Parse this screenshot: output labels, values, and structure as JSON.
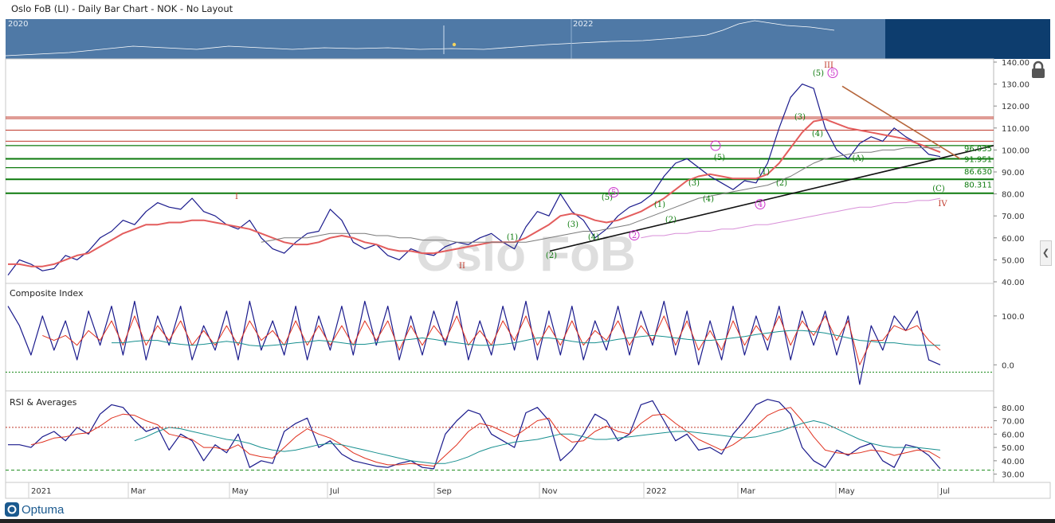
{
  "header": {
    "title": "Oslo FoB (LI) - Daily Bar Chart - NOK - No Layout"
  },
  "navigator": {
    "years": [
      "2020",
      "2022"
    ]
  },
  "brand": {
    "name": "Optuma"
  },
  "watermark": "Oslo FoB",
  "chart_data": [
    {
      "type": "line",
      "name": "price",
      "ylim": [
        40,
        140
      ],
      "y_ticks": [
        "140.00",
        "130.00",
        "120.00",
        "110.00",
        "100.00",
        "90.00",
        "80.00",
        "70.00",
        "60.00",
        "50.00",
        "40.00"
      ],
      "x_ticks": [
        "2021",
        "Mar",
        "May",
        "Jul",
        "Sep",
        "Nov",
        "2022",
        "Mar",
        "May",
        "Jul"
      ],
      "red_levels": [
        115,
        109,
        104
      ],
      "green_levels": [
        102,
        96,
        91.95,
        86.63,
        80.3
      ],
      "level_labels": [
        "96.035",
        "91.951",
        "86.630",
        "80.311"
      ],
      "wave_labels": [
        "I",
        "II",
        "III",
        "IV",
        "(1)",
        "(2)",
        "(3)",
        "(4)",
        "(5)",
        "(1)",
        "(2)",
        "(3)",
        "(4)",
        "(5)",
        "(1)",
        "(2)",
        "(3)",
        "(4)",
        "(5)",
        "(A)",
        "(C)",
        "5",
        "5",
        "2",
        "4"
      ],
      "series": [
        {
          "values": [
            43,
            50,
            48,
            45,
            46,
            52,
            50,
            54,
            60,
            63,
            68,
            66,
            72,
            76,
            74,
            73,
            78,
            72,
            70,
            66,
            64,
            68,
            60,
            55,
            53,
            58,
            62,
            63,
            73,
            68,
            58,
            55,
            57,
            52,
            50,
            55,
            53,
            52,
            56,
            58,
            57,
            60,
            62,
            58,
            55,
            65,
            72,
            70,
            80,
            72,
            68,
            60,
            64,
            70,
            74,
            76,
            80,
            88,
            94,
            96,
            92,
            88,
            85,
            82,
            86,
            85,
            94,
            110,
            124,
            130,
            128,
            110,
            100,
            96,
            103,
            106,
            104,
            110,
            106,
            103,
            98,
            97
          ]
        },
        {
          "values": [
            48,
            48,
            47,
            47,
            48,
            50,
            52,
            53,
            56,
            59,
            62,
            64,
            66,
            66,
            67,
            67,
            68,
            68,
            67,
            66,
            65,
            64,
            62,
            60,
            58,
            57,
            57,
            58,
            60,
            61,
            60,
            58,
            57,
            55,
            54,
            54,
            53,
            53,
            54,
            55,
            56,
            57,
            58,
            58,
            58,
            60,
            63,
            66,
            70,
            71,
            70,
            68,
            67,
            68,
            70,
            72,
            75,
            78,
            82,
            86,
            88,
            89,
            88,
            87,
            87,
            87,
            89,
            94,
            101,
            108,
            113,
            114,
            112,
            110,
            109,
            108,
            107,
            106,
            105,
            103,
            101,
            99
          ]
        },
        {
          "values": [
            null,
            null,
            null,
            null,
            null,
            null,
            null,
            null,
            null,
            null,
            null,
            null,
            null,
            null,
            null,
            null,
            null,
            null,
            null,
            null,
            null,
            null,
            58,
            59,
            60,
            60,
            60,
            61,
            62,
            62,
            62,
            62,
            61,
            61,
            60,
            60,
            59,
            59,
            59,
            58,
            58,
            58,
            58,
            58,
            58,
            58,
            59,
            60,
            61,
            62,
            63,
            63,
            64,
            65,
            66,
            68,
            70,
            72,
            74,
            76,
            78,
            79,
            80,
            81,
            82,
            83,
            84,
            86,
            88,
            91,
            94,
            96,
            97,
            98,
            99,
            99,
            100,
            100,
            101,
            101,
            101,
            101
          ]
        },
        {
          "values": [
            null,
            null,
            null,
            null,
            null,
            null,
            null,
            null,
            null,
            null,
            null,
            null,
            null,
            null,
            null,
            null,
            null,
            null,
            null,
            null,
            null,
            null,
            null,
            null,
            null,
            null,
            null,
            null,
            null,
            null,
            null,
            null,
            null,
            null,
            null,
            null,
            null,
            null,
            null,
            null,
            null,
            null,
            null,
            null,
            null,
            null,
            null,
            null,
            null,
            null,
            null,
            null,
            null,
            null,
            null,
            60,
            61,
            61,
            62,
            62,
            63,
            63,
            64,
            64,
            65,
            66,
            66,
            67,
            68,
            69,
            70,
            71,
            72,
            73,
            74,
            74,
            75,
            76,
            76,
            77,
            77,
            78
          ]
        }
      ]
    },
    {
      "type": "line",
      "name": "composite-index",
      "title": "Composite Index",
      "ylim": [
        -50,
        160
      ],
      "y_ticks": [
        "100.0",
        "0.0"
      ],
      "series": [
        {
          "values": [
            120,
            80,
            20,
            100,
            30,
            90,
            10,
            110,
            40,
            120,
            20,
            130,
            10,
            100,
            40,
            120,
            10,
            80,
            30,
            110,
            10,
            130,
            30,
            90,
            20,
            120,
            10,
            100,
            30,
            120,
            20,
            130,
            40,
            120,
            10,
            100,
            20,
            110,
            40,
            130,
            10,
            90,
            20,
            120,
            30,
            130,
            10,
            110,
            20,
            120,
            10,
            90,
            30,
            120,
            20,
            110,
            40,
            130,
            20,
            110,
            0,
            90,
            10,
            120,
            20,
            100,
            30,
            120,
            10,
            110,
            40,
            110,
            20,
            100,
            -40,
            80,
            30,
            100,
            70,
            110,
            10,
            0
          ]
        },
        {
          "values": [
            null,
            null,
            null,
            60,
            50,
            60,
            40,
            70,
            50,
            90,
            40,
            100,
            40,
            80,
            50,
            90,
            40,
            70,
            40,
            80,
            40,
            90,
            50,
            70,
            40,
            90,
            40,
            80,
            40,
            80,
            40,
            90,
            50,
            90,
            30,
            80,
            40,
            80,
            50,
            100,
            40,
            70,
            40,
            90,
            50,
            100,
            40,
            80,
            40,
            90,
            40,
            70,
            50,
            90,
            40,
            80,
            50,
            100,
            40,
            90,
            30,
            70,
            30,
            90,
            40,
            80,
            50,
            100,
            40,
            90,
            60,
            100,
            50,
            90,
            0,
            50,
            50,
            80,
            70,
            80,
            50,
            30
          ]
        },
        {
          "values": [
            null,
            null,
            null,
            null,
            null,
            null,
            null,
            null,
            null,
            45,
            45,
            48,
            50,
            50,
            45,
            42,
            40,
            42,
            45,
            48,
            45,
            40,
            38,
            40,
            42,
            45,
            47,
            50,
            48,
            45,
            42,
            42,
            45,
            48,
            50,
            52,
            55,
            52,
            48,
            45,
            42,
            40,
            40,
            42,
            45,
            50,
            55,
            55,
            52,
            48,
            45,
            45,
            48,
            52,
            55,
            58,
            60,
            58,
            55,
            52,
            50,
            50,
            52,
            55,
            58,
            62,
            65,
            68,
            70,
            70,
            68,
            65,
            60,
            55,
            50,
            48,
            45,
            45,
            42,
            40,
            40,
            40
          ]
        }
      ]
    },
    {
      "type": "line",
      "name": "rsi",
      "title": "RSI & Averages",
      "ylim": [
        25,
        90
      ],
      "y_ticks": [
        "80.00",
        "70.00",
        "60.00",
        "50.00",
        "40.00",
        "30.00"
      ],
      "series": [
        {
          "values": [
            52,
            52,
            50,
            58,
            62,
            55,
            65,
            60,
            75,
            82,
            80,
            70,
            62,
            65,
            48,
            60,
            55,
            40,
            52,
            46,
            60,
            35,
            40,
            38,
            62,
            68,
            72,
            50,
            55,
            45,
            40,
            38,
            36,
            35,
            38,
            40,
            35,
            34,
            60,
            70,
            78,
            75,
            60,
            55,
            50,
            76,
            80,
            70,
            40,
            48,
            60,
            75,
            70,
            55,
            60,
            82,
            85,
            70,
            55,
            60,
            48,
            50,
            45,
            60,
            70,
            82,
            86,
            84,
            75,
            50,
            40,
            35,
            48,
            44,
            50,
            53,
            40,
            35,
            52,
            50,
            44,
            34
          ]
        },
        {
          "values": [
            null,
            null,
            52,
            54,
            57,
            58,
            60,
            61,
            66,
            72,
            75,
            74,
            70,
            67,
            60,
            58,
            56,
            50,
            50,
            48,
            52,
            45,
            43,
            42,
            50,
            58,
            64,
            60,
            57,
            52,
            46,
            42,
            39,
            37,
            37,
            38,
            37,
            36,
            44,
            52,
            62,
            68,
            66,
            62,
            58,
            64,
            70,
            72,
            60,
            54,
            55,
            62,
            66,
            62,
            60,
            68,
            74,
            75,
            68,
            62,
            56,
            52,
            48,
            52,
            58,
            66,
            74,
            78,
            80,
            70,
            58,
            48,
            46,
            45,
            46,
            48,
            47,
            44,
            46,
            48,
            47,
            42
          ]
        },
        {
          "values": [
            null,
            null,
            null,
            null,
            null,
            null,
            null,
            null,
            null,
            null,
            null,
            55,
            58,
            62,
            65,
            64,
            62,
            60,
            58,
            56,
            55,
            53,
            50,
            48,
            47,
            48,
            50,
            52,
            53,
            52,
            50,
            48,
            46,
            44,
            42,
            40,
            39,
            38,
            38,
            40,
            43,
            47,
            50,
            52,
            54,
            55,
            56,
            58,
            60,
            60,
            58,
            56,
            56,
            57,
            58,
            59,
            60,
            61,
            62,
            62,
            61,
            60,
            59,
            58,
            57,
            58,
            60,
            62,
            65,
            68,
            70,
            68,
            64,
            60,
            56,
            53,
            51,
            50,
            50,
            50,
            49,
            48
          ]
        }
      ],
      "ref_lines": [
        65,
        33
      ]
    }
  ]
}
